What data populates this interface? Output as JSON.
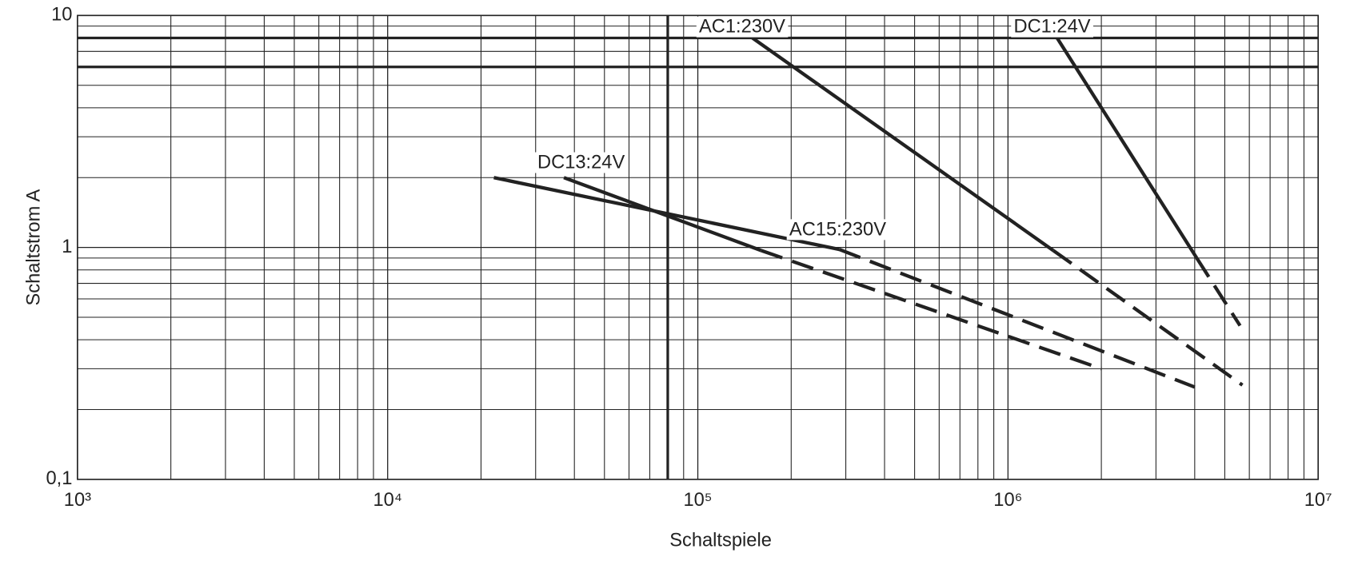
{
  "chart_data": {
    "type": "line",
    "x_label": "Schaltspiele",
    "y_label": "Schaltstrom A",
    "xscale": "log",
    "yscale": "log",
    "xlim": [
      1000,
      10000000
    ],
    "ylim": [
      0.1,
      10
    ],
    "xticks": [
      {
        "value": 1000,
        "label": "10³"
      },
      {
        "value": 10000,
        "label": "10⁴"
      },
      {
        "value": 100000,
        "label": "10⁵"
      },
      {
        "value": 1000000,
        "label": "10⁶"
      },
      {
        "value": 10000000,
        "label": "10⁷"
      }
    ],
    "yticks": [
      {
        "value": 0.1,
        "label": "0,1"
      },
      1,
      10
    ],
    "xminor": [
      2000,
      3000,
      4000,
      5000,
      6000,
      7000,
      8000,
      9000,
      20000,
      30000,
      40000,
      50000,
      60000,
      70000,
      80000,
      90000,
      200000,
      300000,
      400000,
      500000,
      600000,
      700000,
      800000,
      900000,
      2000000,
      3000000,
      4000000,
      5000000,
      6000000,
      7000000,
      8000000,
      9000000
    ],
    "yminor": [
      0.2,
      0.3,
      0.4,
      0.5,
      0.6,
      0.7,
      0.8,
      0.9,
      2,
      3,
      4,
      5,
      6,
      7,
      8,
      9
    ],
    "grid": true,
    "reference_lines": {
      "y": [
        8,
        6
      ],
      "x": [
        80000
      ]
    },
    "series": [
      {
        "name": "AC1:230V",
        "color": "#222222",
        "x": [
          150000,
          1400000,
          5700000
        ],
        "values": [
          8,
          0.97,
          0.255
        ],
        "segment_styles": [
          "solid",
          "dashed"
        ]
      },
      {
        "name": "DC1:24V",
        "color": "#222222",
        "x": [
          1440000,
          4060000,
          5600000
        ],
        "values": [
          8,
          0.9,
          0.46
        ],
        "segment_styles": [
          "solid",
          "dashed"
        ]
      },
      {
        "name": "DC13:24V",
        "color": "#222222",
        "x": [
          37000,
          160000,
          2000000
        ],
        "values": [
          2,
          0.97,
          0.3
        ],
        "segment_styles": [
          "solid",
          "dashed"
        ]
      },
      {
        "name": "AC15:230V",
        "color": "#222222",
        "x": [
          22000,
          286000,
          4000000
        ],
        "values": [
          2,
          0.98,
          0.25
        ],
        "segment_styles": [
          "solid",
          "dashed"
        ]
      }
    ]
  }
}
